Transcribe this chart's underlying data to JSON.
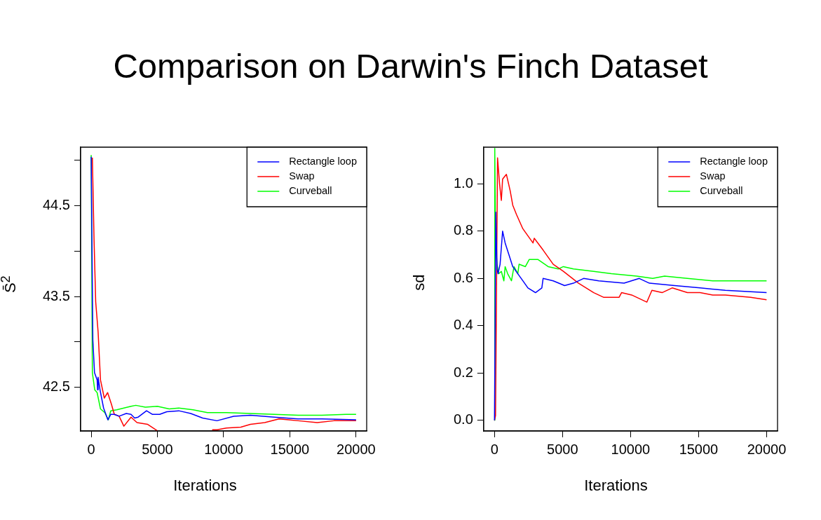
{
  "chart_data": [
    {
      "type": "line",
      "title": "Comparison on Darwin's Finch Dataset",
      "xlabel": "Iterations",
      "ylabel": "S̄$^{2}$",
      "xlim": [
        -800,
        20800
      ],
      "xticks": [
        0,
        5000,
        10000,
        15000,
        20000
      ],
      "ylim": [
        42.017,
        45.146
      ],
      "yticks": [
        42.5,
        {
          "value": 43,
          "label": null
        },
        43.5,
        {
          "value": 44,
          "label": null
        },
        44.5,
        {
          "value": 45,
          "label": null
        }
      ],
      "legend": "top right",
      "marker": "none",
      "series": [
        {
          "name": "Rectangle loop",
          "color": "#0000ff",
          "x": [
            0,
            126,
            252,
            450,
            487,
            523,
            667,
            937,
            1261,
            1478,
            1748,
            2108,
            2649,
            3009,
            3280,
            3550,
            4181,
            4631,
            5172,
            5712,
            6613,
            7514,
            8415,
            9496,
            10757,
            12019,
            13821,
            15623,
            17425,
            20000
          ],
          "values": [
            45.04,
            43.02,
            42.66,
            42.58,
            42.47,
            42.61,
            42.47,
            42.27,
            42.14,
            42.2,
            42.2,
            42.18,
            42.21,
            42.2,
            42.16,
            42.17,
            42.24,
            42.2,
            42.2,
            42.23,
            42.24,
            42.21,
            42.16,
            42.13,
            42.18,
            42.19,
            42.17,
            42.15,
            42.15,
            42.14
          ]
        },
        {
          "name": "Swap",
          "color": "#ff0000",
          "x": [
            90,
            216,
            342,
            523,
            703,
            991,
            1243,
            1532,
            1748,
            2108,
            2468,
            3009,
            3460,
            4271,
            4991,
            5500,
            6000,
            9135,
            9496,
            10217,
            11298,
            12019,
            13100,
            14181,
            14902,
            15623,
            17064,
            18326,
            20000
          ],
          "values": [
            45.03,
            44.13,
            43.44,
            43.11,
            42.58,
            42.38,
            42.44,
            42.31,
            42.2,
            42.18,
            42.07,
            42.17,
            42.11,
            42.09,
            42.02,
            null,
            null,
            42.03,
            42.03,
            42.05,
            42.06,
            42.09,
            42.11,
            42.15,
            42.14,
            42.13,
            42.11,
            42.13,
            42.13
          ]
        },
        {
          "name": "Curveball",
          "color": "#00ff00",
          "x": [
            0,
            90,
            270,
            450,
            703,
            1027,
            1297,
            1478,
            1928,
            2468,
            3009,
            3370,
            4090,
            4991,
            5892,
            6613,
            7694,
            8775,
            10217,
            12019,
            13821,
            15623,
            17425,
            19227,
            20000
          ],
          "values": [
            45.06,
            42.66,
            42.47,
            42.44,
            42.26,
            42.22,
            42.14,
            42.24,
            42.25,
            42.27,
            42.29,
            42.3,
            42.28,
            42.29,
            42.26,
            42.27,
            42.25,
            42.22,
            42.22,
            42.21,
            42.2,
            42.19,
            42.19,
            42.2,
            42.2
          ]
        }
      ]
    },
    {
      "type": "line",
      "xlabel": "Iterations",
      "ylabel": "sd",
      "xlim": [
        -800,
        20800
      ],
      "xticks": [
        0,
        5000,
        10000,
        15000,
        20000
      ],
      "ylim": [
        -0.045,
        1.155
      ],
      "yticks": [
        {
          "value": 0,
          "label": "0.0"
        },
        0.2,
        0.4,
        0.6,
        0.8,
        {
          "value": 1,
          "label": "1.0"
        }
      ],
      "legend": "top right",
      "marker": "none",
      "series": [
        {
          "name": "Rectangle loop",
          "color": "#0000ff",
          "x": [
            0,
            93,
            186,
            260,
            409,
            595,
            781,
            1060,
            1339,
            1711,
            2083,
            2455,
            3013,
            3478,
            3571,
            4315,
            5152,
            5803,
            6547,
            7663,
            9523,
            10639,
            11383,
            13243,
            15103,
            16963,
            19995
          ],
          "values": [
            0,
            0.88,
            0.64,
            0.62,
            0.66,
            0.8,
            0.75,
            0.7,
            0.65,
            0.62,
            0.59,
            0.56,
            0.54,
            0.56,
            0.6,
            0.59,
            0.57,
            0.58,
            0.6,
            0.59,
            0.58,
            0.6,
            0.58,
            0.57,
            0.56,
            0.55,
            0.54
          ]
        },
        {
          "name": "Swap",
          "color": "#ff0000",
          "x": [
            0,
            74,
            223,
            372,
            502,
            595,
            874,
            1153,
            1339,
            1618,
            2083,
            2827,
            2920,
            3571,
            4315,
            5059,
            6175,
            7291,
            8035,
            9151,
            9337,
            10081,
            11197,
            11569,
            12313,
            13057,
            14173,
            15103,
            16033,
            16963,
            18823,
            19995
          ],
          "values": [
            0,
            0.02,
            1.11,
            1.0,
            0.93,
            1.02,
            1.04,
            0.97,
            0.91,
            0.87,
            0.81,
            0.75,
            0.77,
            0.72,
            0.66,
            0.63,
            0.58,
            0.54,
            0.52,
            0.52,
            0.54,
            0.53,
            0.5,
            0.55,
            0.54,
            0.56,
            0.54,
            0.54,
            0.53,
            0.53,
            0.52,
            0.51
          ]
        },
        {
          "name": "Curveball",
          "color": "#00ff00",
          "x": [
            0,
            19,
            74,
            186,
            316,
            502,
            688,
            781,
            967,
            1246,
            1432,
            1711,
            1804,
            2269,
            2548,
            3199,
            3943,
            4687,
            5059,
            5803,
            7291,
            8593,
            10453,
            11625,
            12499,
            14173,
            16033,
            17893,
            19381,
            19995
          ],
          "values": [
            0,
            1.15,
            0.75,
            0.66,
            0.62,
            0.63,
            0.59,
            0.65,
            0.62,
            0.59,
            0.65,
            0.62,
            0.66,
            0.65,
            0.68,
            0.68,
            0.65,
            0.64,
            0.65,
            0.64,
            0.63,
            0.62,
            0.61,
            0.6,
            0.61,
            0.6,
            0.59,
            0.59,
            0.59,
            0.59
          ]
        }
      ]
    }
  ]
}
